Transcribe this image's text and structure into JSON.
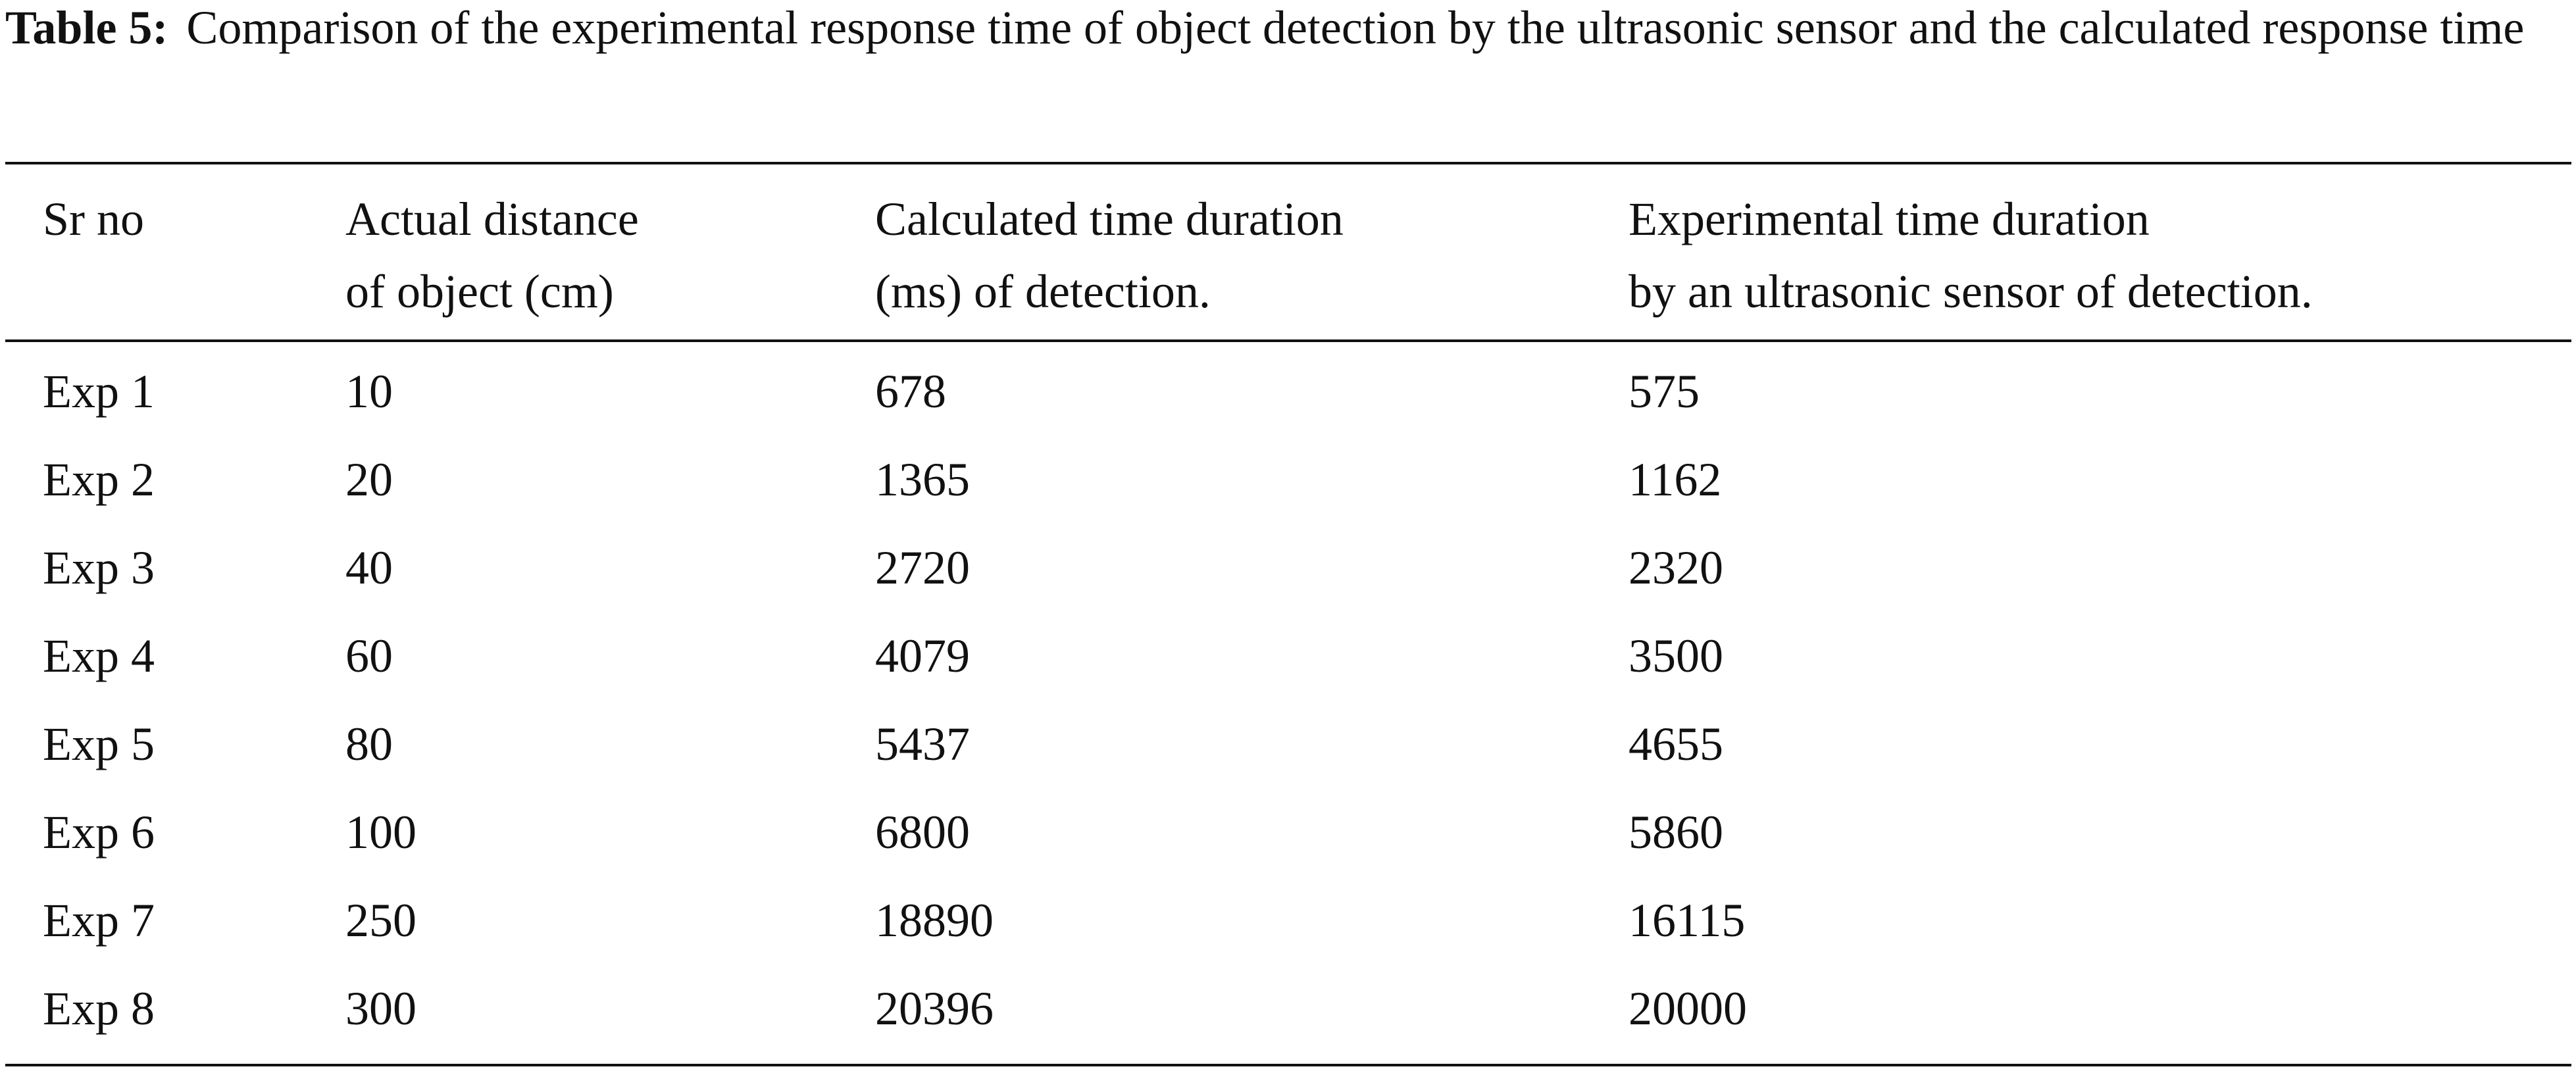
{
  "caption": {
    "label": "Table 5:",
    "text": "Comparison of the experimental response time of object detection by the ultrasonic sensor and the calculated response time"
  },
  "table": {
    "headers": [
      [
        "Sr no"
      ],
      [
        "Actual distance",
        "of object (cm)"
      ],
      [
        "Calculated time duration",
        "(ms) of detection."
      ],
      [
        "Experimental time duration",
        "by an ultrasonic sensor of detection."
      ]
    ],
    "rows": [
      [
        "Exp 1",
        "10",
        "678",
        "575"
      ],
      [
        "Exp 2",
        "20",
        "1365",
        "1162"
      ],
      [
        "Exp 3",
        "40",
        "2720",
        "2320"
      ],
      [
        "Exp 4",
        "60",
        "4079",
        "3500"
      ],
      [
        "Exp 5",
        "80",
        "5437",
        "4655"
      ],
      [
        "Exp 6",
        "100",
        "6800",
        "5860"
      ],
      [
        "Exp 7",
        "250",
        "18890",
        "16115"
      ],
      [
        "Exp 8",
        "300",
        "20396",
        "20000"
      ]
    ]
  }
}
